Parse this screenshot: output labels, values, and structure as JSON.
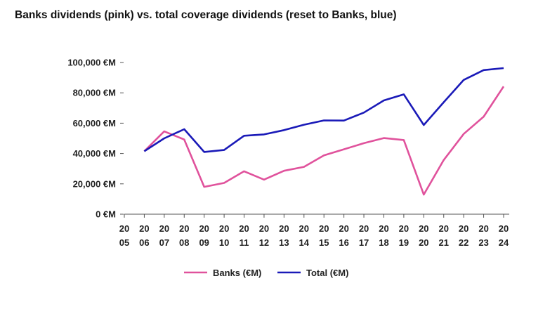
{
  "chart_data": {
    "type": "line",
    "title": "Banks dividends (pink) vs. total coverage dividends (reset to Banks, blue)",
    "xlabel": "",
    "ylabel": "",
    "x": [
      "2005",
      "2006",
      "2007",
      "2008",
      "2009",
      "2010",
      "2011",
      "2012",
      "2013",
      "2014",
      "2015",
      "2016",
      "2017",
      "2018",
      "2019",
      "2020",
      "2021",
      "2022",
      "2023",
      "2024"
    ],
    "x_tick_labels": [
      [
        "20",
        "05"
      ],
      [
        "20",
        "06"
      ],
      [
        "20",
        "07"
      ],
      [
        "20",
        "08"
      ],
      [
        "20",
        "09"
      ],
      [
        "20",
        "10"
      ],
      [
        "20",
        "11"
      ],
      [
        "20",
        "12"
      ],
      [
        "20",
        "13"
      ],
      [
        "20",
        "14"
      ],
      [
        "20",
        "15"
      ],
      [
        "20",
        "16"
      ],
      [
        "20",
        "17"
      ],
      [
        "20",
        "18"
      ],
      [
        "20",
        "19"
      ],
      [
        "20",
        "20"
      ],
      [
        "20",
        "21"
      ],
      [
        "20",
        "22"
      ],
      [
        "20",
        "23"
      ],
      [
        "20",
        "24"
      ]
    ],
    "ylim": [
      0,
      100000
    ],
    "y_ticks": [
      0,
      20000,
      40000,
      60000,
      80000,
      100000
    ],
    "y_tick_labels": [
      "0 €M",
      "20,000 €M",
      "40,000 €M",
      "60,000 €M",
      "80,000 €M",
      "100,000 €M"
    ],
    "grid": false,
    "legend_position": "bottom-center",
    "series": [
      {
        "name": "Banks (€M)",
        "color": "#e0529c",
        "values": [
          null,
          41500,
          54600,
          49200,
          18000,
          20600,
          28300,
          22800,
          28600,
          31200,
          38800,
          42800,
          46800,
          50200,
          48900,
          12900,
          35700,
          52900,
          64300,
          84200
        ]
      },
      {
        "name": "Total (€M)",
        "color": "#1a1ab8",
        "values": [
          null,
          41500,
          50000,
          56000,
          41000,
          42300,
          51700,
          52600,
          55400,
          59000,
          61800,
          61700,
          67000,
          75000,
          79000,
          58800,
          73800,
          88500,
          95000,
          96300
        ]
      }
    ]
  }
}
